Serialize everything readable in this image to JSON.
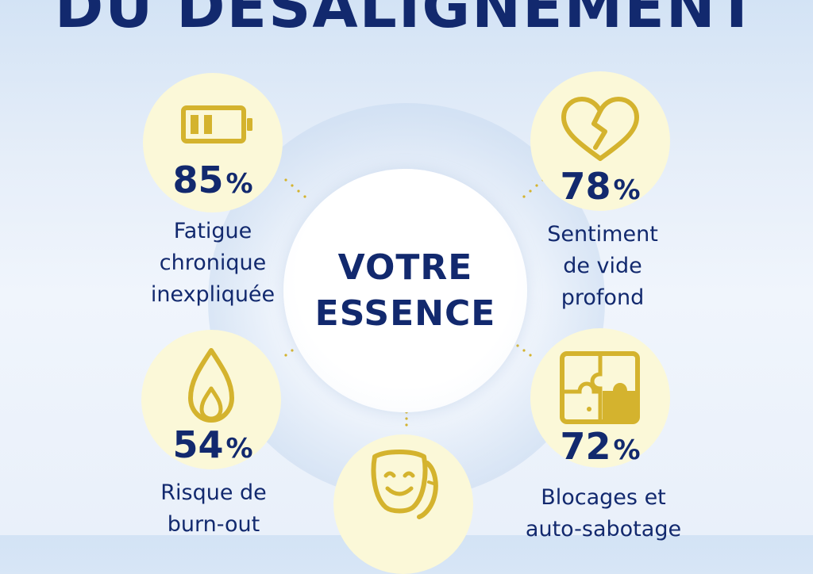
{
  "title": "DU DÉSALIGNEMENT",
  "center": {
    "line1": "VOTRE",
    "line2": "ESSENCE"
  },
  "unit": "%",
  "stats": [
    {
      "value": "85",
      "label_lines": [
        "Fatigue",
        "chronique",
        "inexpliquée"
      ],
      "icon": "battery-icon"
    },
    {
      "value": "78",
      "label_lines": [
        "Sentiment",
        "de vide",
        "profond"
      ],
      "icon": "broken-heart-icon"
    },
    {
      "value": "54",
      "label_lines": [
        "Risque de",
        "burn-out"
      ],
      "icon": "flame-icon"
    },
    {
      "value": "72",
      "label_lines": [
        "Blocages et",
        "auto-sabotage"
      ],
      "icon": "puzzle-icon"
    },
    {
      "icon": "theater-mask-icon"
    }
  ],
  "colors": {
    "navy": "#12296e",
    "gold": "#d4b32e",
    "icon_bg": "#fbf8d8"
  }
}
